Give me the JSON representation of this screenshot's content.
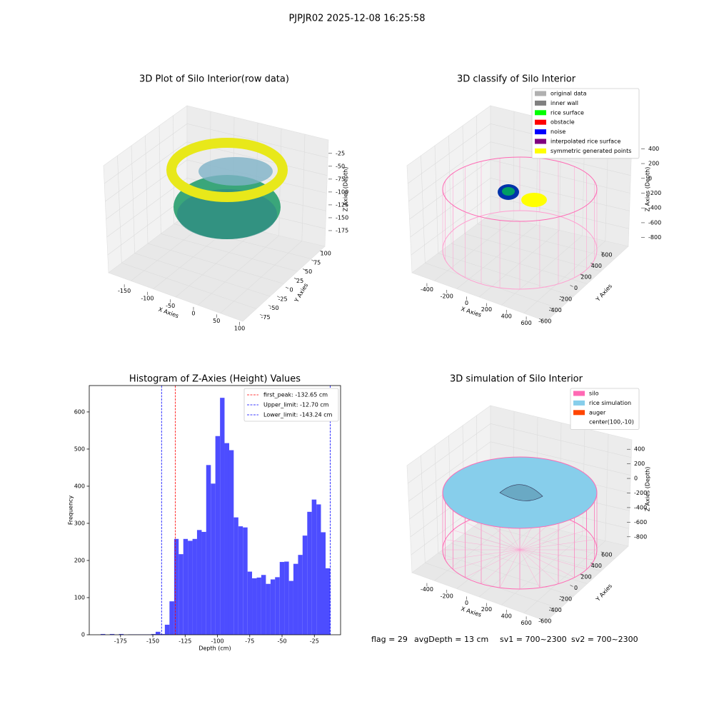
{
  "suptitle": "PJPJR02 2025-12-08 16:25:58",
  "status": [
    "flag = 29",
    "avgDepth = 13 cm",
    "sv1 = 700~2300",
    "sv2 = 700~2300"
  ],
  "chart_data": [
    {
      "type": "scatter3d",
      "title": "3D Plot of Silo Interior(row data)",
      "xlabel": "X Axies",
      "ylabel": "Y Axies",
      "zlabel": "Z Axies (Depth)",
      "xlim": [
        -175,
        110
      ],
      "xticks": [
        -150,
        -100,
        -50,
        0,
        50,
        100
      ],
      "ylim": [
        -100,
        110
      ],
      "yticks": [
        -75,
        -50,
        -25,
        0,
        25,
        50,
        75,
        100
      ],
      "zlim": [
        -200,
        -10
      ],
      "zticks": [
        -25,
        -50,
        -75,
        -100,
        -125,
        -150,
        -175
      ]
    },
    {
      "type": "scatter3d",
      "title": "3D classify of Silo Interior",
      "xlabel": "X Axies",
      "ylabel": "Y Axies",
      "zlabel": "Z Axies (Depth)",
      "xlim": [
        -500,
        700
      ],
      "xticks": [
        -400,
        -200,
        0,
        200,
        400,
        600
      ],
      "ylim": [
        -700,
        700
      ],
      "yticks": [
        -600,
        -400,
        -200,
        0,
        200,
        400,
        600
      ],
      "zlim": [
        -900,
        500
      ],
      "zticks": [
        400,
        200,
        0,
        -200,
        -400,
        -600,
        -800
      ],
      "series": [
        {
          "name": "original data",
          "color": "#b0b0b0"
        },
        {
          "name": "inner wall",
          "color": "#808080"
        },
        {
          "name": "rice surface",
          "color": "#00ff00"
        },
        {
          "name": "obstacle",
          "color": "#ff0000"
        },
        {
          "name": "noise",
          "color": "#0000ff"
        },
        {
          "name": "interpolated rice surface",
          "color": "#800080"
        },
        {
          "name": "symmetric generated points",
          "color": "#ffff00"
        }
      ]
    },
    {
      "type": "histogram",
      "title": "Histogram of Z-Axies (Height) Values",
      "xlabel": "Depth (cm)",
      "ylabel": "Frequency",
      "color": "#4d4dff",
      "bins": [
        -190.4,
        -186.8,
        -183.3,
        -179.7,
        -176.2,
        -172.6,
        -169.1,
        -165.5,
        -162.0,
        -158.4,
        -154.9,
        -151.3,
        -147.8,
        -144.2,
        -140.7,
        -137.1,
        -133.5,
        -130.0,
        -126.4,
        -122.9,
        -119.3,
        -115.8,
        -112.2,
        -108.7,
        -105.1,
        -101.6,
        -98.0,
        -94.5,
        -90.9,
        -87.4,
        -83.8,
        -80.3,
        -76.7,
        -73.2,
        -69.6,
        -66.1,
        -62.5,
        -58.9,
        -55.4,
        -51.8,
        -48.3,
        -44.7,
        -41.2,
        -37.6,
        -34.1,
        -30.5,
        -27.0,
        -23.4,
        -19.9,
        -16.3,
        -12.7
      ],
      "values": [
        2,
        0,
        2,
        0,
        2,
        0,
        1,
        1,
        1,
        1,
        1,
        2,
        8,
        2,
        27,
        90,
        258,
        217,
        258,
        253,
        258,
        282,
        277,
        457,
        407,
        535,
        638,
        516,
        497,
        316,
        292,
        289,
        170,
        152,
        154,
        161,
        137,
        149,
        155,
        196,
        197,
        145,
        191,
        215,
        267,
        331,
        364,
        351,
        276,
        179
      ],
      "xlim": [
        -199.2,
        -4.7
      ],
      "xticks": [
        -175,
        -150,
        -125,
        -100,
        -75,
        -50,
        -25
      ],
      "ylim": [
        0,
        671
      ],
      "yticks": [
        0,
        100,
        200,
        300,
        400,
        500,
        600
      ],
      "legend": "upper right",
      "lines": [
        {
          "name": "first_peak: -132.65 cm",
          "value": -132.65,
          "color": "#ff0000"
        },
        {
          "name": "Upper_limit: -12.70 cm",
          "value": -12.7,
          "color": "#0000ff"
        },
        {
          "name": "Lower_limit: -143.24 cm",
          "value": -143.24,
          "color": "#0000ff"
        }
      ]
    },
    {
      "type": "surface3d",
      "title": "3D simulation of Silo Interior",
      "xlabel": "X Axies",
      "ylabel": "Y Axies",
      "zlabel": "Z Axies (Depth)",
      "xlim": [
        -500,
        700
      ],
      "xticks": [
        -400,
        -200,
        0,
        200,
        400,
        600
      ],
      "ylim": [
        -700,
        700
      ],
      "yticks": [
        -600,
        -400,
        -200,
        0,
        200,
        400,
        600
      ],
      "zlim": [
        -900,
        500
      ],
      "zticks": [
        400,
        200,
        0,
        -200,
        -400,
        -600,
        -800
      ],
      "series": [
        {
          "name": "silo",
          "color": "#ff69b4"
        },
        {
          "name": "rice simulation",
          "color": "#87ceeb"
        },
        {
          "name": "auger",
          "color": "#ff4500"
        },
        {
          "name": "center(100,-10)",
          "color": "#ffffff"
        }
      ]
    }
  ]
}
